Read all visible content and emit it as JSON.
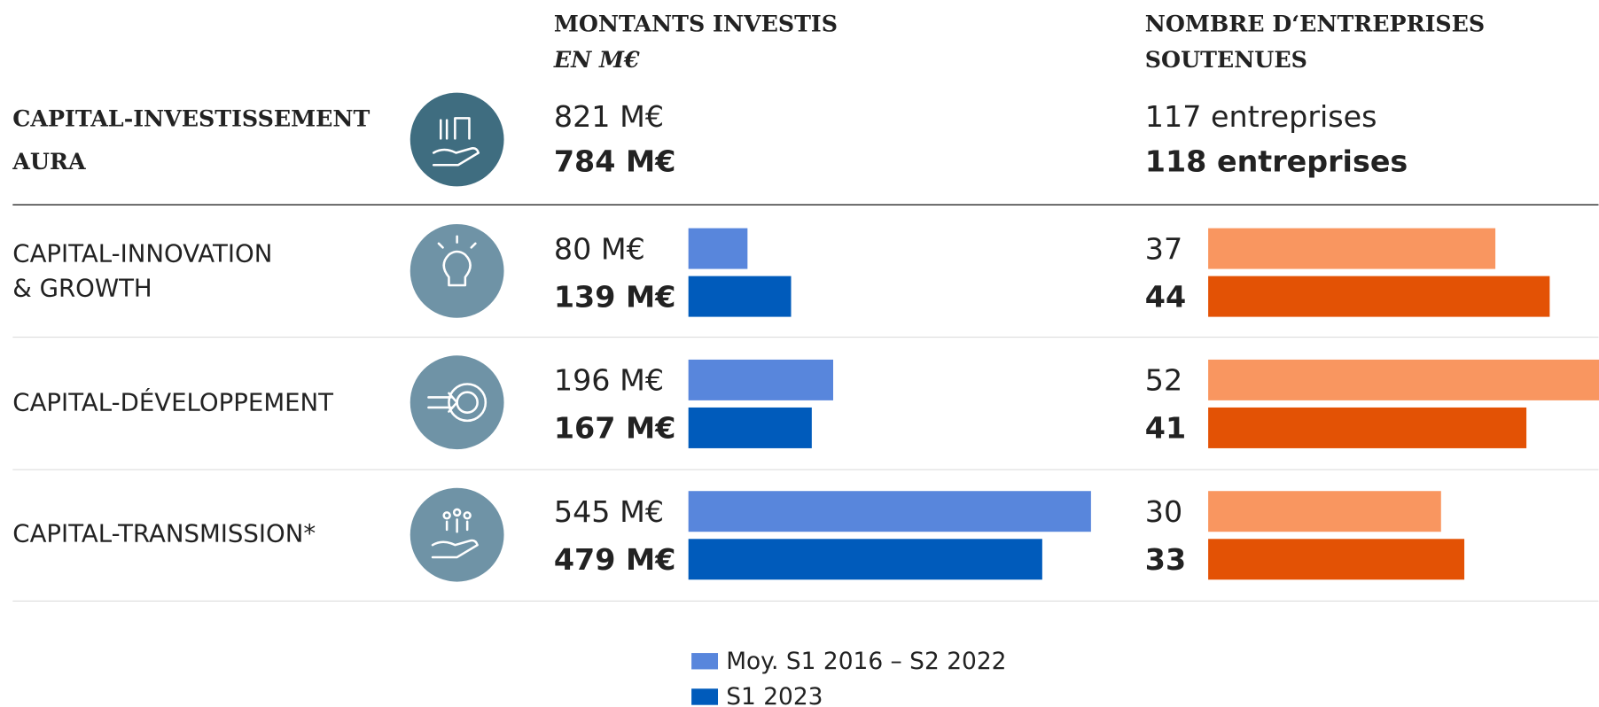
{
  "header": {
    "amount_title": "MONTANTS INVESTIS",
    "amount_unit": "EN M€",
    "count_title_lines": [
      "NOMBRE D‘ENTREPRISES",
      "SOUTENUES"
    ]
  },
  "total": {
    "label_lines": [
      "CAPITAL-INVESTISSEMENT",
      "AURA"
    ],
    "amount_labels": [
      "821 M€",
      "784 M€"
    ],
    "count_labels": [
      "117 entreprises",
      "118 entreprises"
    ]
  },
  "chart_data": {
    "type": "bar",
    "orientation": "horizontal",
    "categories": [
      [
        "CAPITAL-INNOVATION",
        "& GROWTH"
      ],
      [
        "CAPITAL-DÉVELOPPEMENT"
      ],
      [
        "CAPITAL-TRANSMISSION*"
      ]
    ],
    "amounts": {
      "xlim": [
        0,
        545
      ],
      "series": [
        {
          "name": "Moy. S1 2016 – S2 2022",
          "color": "#5886dc",
          "values": [
            80,
            196,
            545
          ],
          "value_labels": [
            "80 M€",
            "196 M€",
            "545 M€"
          ]
        },
        {
          "name": "S1 2023",
          "color": "#005bbb",
          "values": [
            139,
            167,
            479
          ],
          "value_labels": [
            "139 M€",
            "167 M€",
            "479 M€"
          ]
        }
      ]
    },
    "counts": {
      "xlim": [
        0,
        52
      ],
      "series": [
        {
          "color": "#f99660",
          "values": [
            37,
            52,
            30
          ]
        },
        {
          "color": "#e35205",
          "values": [
            44,
            41,
            33
          ]
        }
      ]
    }
  }
}
